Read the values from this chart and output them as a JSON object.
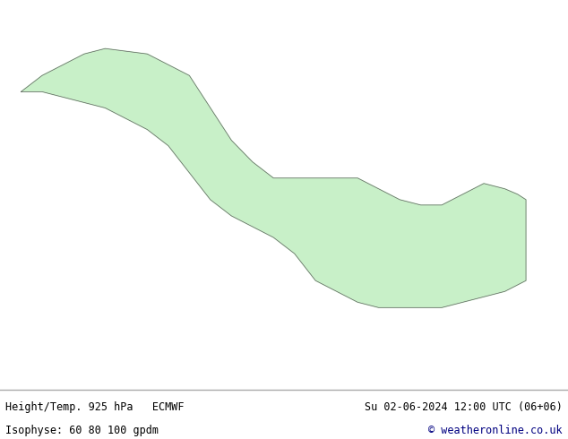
{
  "title_left_line1": "Height/Temp. 925 hPa   ECMWF",
  "title_left_line2": "Isophyse: 60 80 100 gpdm",
  "title_right_line1": "Su 02-06-2024 12:00 UTC (06+06)",
  "title_right_line2": "© weatheronline.co.uk",
  "background_color": "#ffffff",
  "ocean_color": "#e8e8e8",
  "land_color": "#c8f0c8",
  "mountain_color": "#b8b8b8",
  "border_color": "#606060",
  "footer_bg": "#d8d8d8",
  "footer_text_color_left": "#000000",
  "footer_text_color_right_line1": "#000000",
  "footer_text_color_right_line2": "#000080",
  "footer_sep_color": "#aaaaaa",
  "figsize": [
    6.34,
    4.9
  ],
  "dpi": 100,
  "map_extent": [
    -175,
    -40,
    10,
    80
  ],
  "contour_colors": [
    "#808080",
    "#ff0000",
    "#ff8000",
    "#ffff00",
    "#00cc00",
    "#00ffff",
    "#0000ff",
    "#8000ff",
    "#ff00ff",
    "#ff6666",
    "#ffaa00",
    "#aaff00",
    "#00ffaa",
    "#00aaff",
    "#aa00ff"
  ],
  "line_width": 1.0
}
